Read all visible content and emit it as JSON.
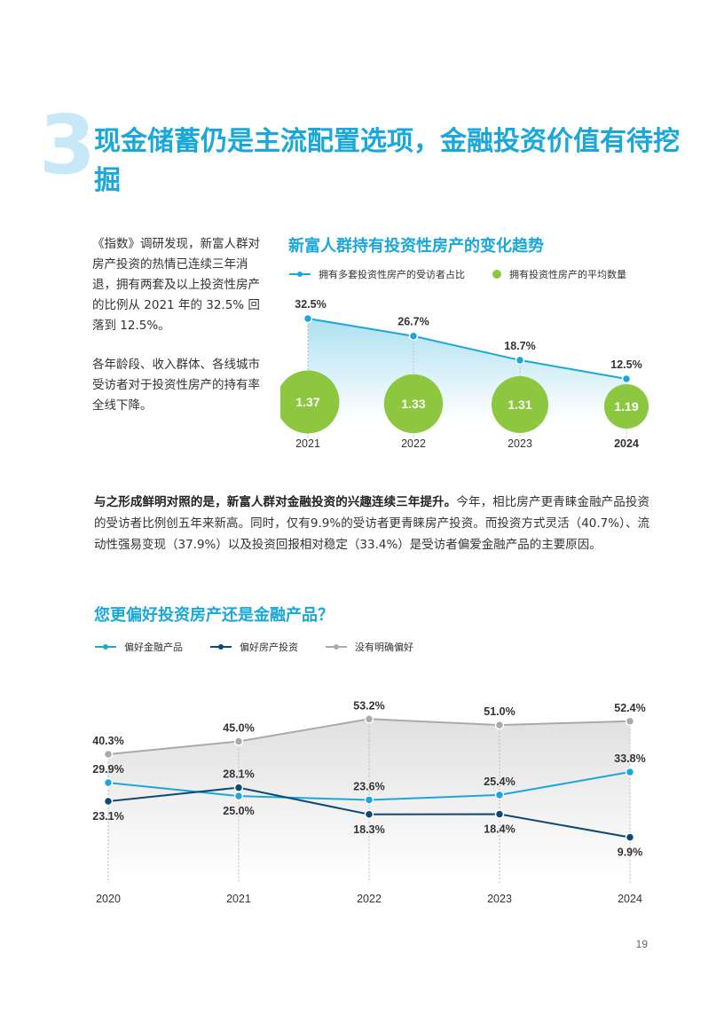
{
  "section": {
    "number": "3",
    "title": "现金储蓄仍是主流配置选项，金融投资价值有待挖掘"
  },
  "intro": {
    "paragraph1": "《指数》调研发现，新富人群对房产投资的热情已连续三年消退，拥有两套及以上投资性房产的比例从 2021 年的 32.5% 回落到 12.5%。",
    "paragraph2": "各年龄段、收入群体、各线城市受访者对于投资性房产的持有率全线下降。"
  },
  "body": {
    "bold_lead": "与之形成鲜明对照的是，新富人群对金融投资的兴趣连续三年提升。",
    "text": "今年，相比房产更青睐金融产品投资的受访者比例创五年来新高。同时，仅有9.9%的受访者更青睐房产投资。而投资方式灵活（40.7%）、流动性强易变现（37.9%）以及投资回报相对稳定（33.4%）是受访者偏爱金融产品的主要原因。"
  },
  "page_number": "19",
  "colors": {
    "accent": "#1aa7d9",
    "green": "#8dc63f",
    "navy": "#0d4a73",
    "gray": "#aaaaaa",
    "section_number": "#c7e9f7"
  },
  "chart_data": [
    {
      "type": "line",
      "title": "新富人群持有投资性房产的变化趋势",
      "categories": [
        "2021",
        "2022",
        "2023",
        "2024"
      ],
      "series": [
        {
          "name": "拥有多套投资性房产的受访者占比",
          "values": [
            32.5,
            26.7,
            18.7,
            12.5
          ],
          "labels": [
            "32.5%",
            "26.7%",
            "18.7%",
            "12.5%"
          ],
          "color": "#1aa7d9"
        },
        {
          "name": "拥有投资性房产的平均数量",
          "values": [
            1.37,
            1.33,
            1.31,
            1.19
          ],
          "labels": [
            "1.37",
            "1.33",
            "1.31",
            "1.19"
          ],
          "color": "#8dc63f",
          "render": "bubble"
        }
      ],
      "ylim": [
        0,
        40
      ],
      "grid": false,
      "legend": "top"
    },
    {
      "type": "line",
      "title": "您更偏好投资房产还是金融产品？",
      "categories": [
        "2020",
        "2021",
        "2022",
        "2023",
        "2024"
      ],
      "series": [
        {
          "name": "偏好金融产品",
          "values": [
            29.9,
            25.0,
            23.6,
            25.4,
            33.8
          ],
          "labels": [
            "29.9%",
            "25.0%",
            "23.6%",
            "25.4%",
            "33.8%"
          ],
          "color": "#1aa7d9"
        },
        {
          "name": "偏好房产投资",
          "values": [
            23.1,
            28.1,
            18.3,
            18.4,
            9.9
          ],
          "labels": [
            "23.1%",
            "28.1%",
            "18.3%",
            "18.4%",
            "9.9%"
          ],
          "color": "#0d4a73"
        },
        {
          "name": "没有明确偏好",
          "values": [
            40.3,
            45.0,
            53.2,
            51.0,
            52.4
          ],
          "labels": [
            "40.3%",
            "45.0%",
            "53.2%",
            "51.0%",
            "52.4%"
          ],
          "color": "#aaaaaa"
        }
      ],
      "ylim": [
        0,
        60
      ],
      "grid": false,
      "legend": "top"
    }
  ]
}
